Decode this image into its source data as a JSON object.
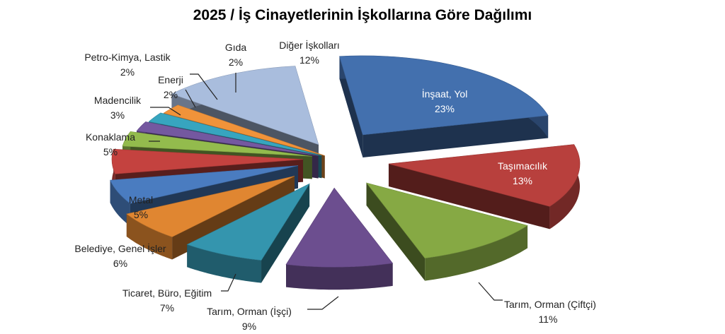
{
  "chart_data": {
    "type": "pie",
    "title": "2025 / İş Cinayetlerinin İşkollarına Göre Dağılımı",
    "slices": [
      {
        "name": "İnşaat, Yol",
        "value": 23,
        "label": "23%",
        "color": "#4370AE"
      },
      {
        "name": "Taşımacılık",
        "value": 13,
        "label": "13%",
        "color": "#B8403D"
      },
      {
        "name": "Tarım, Orman (Çiftçi)",
        "value": 11,
        "label": "11%",
        "color": "#86A944"
      },
      {
        "name": "Tarım, Orman (İşçi)",
        "value": 9,
        "label": "9%",
        "color": "#6C4E8F"
      },
      {
        "name": "Ticaret, Büro, Eğitim",
        "value": 7,
        "label": "7%",
        "color": "#3495AE"
      },
      {
        "name": "Belediye, Genel İşler",
        "value": 6,
        "label": "6%",
        "color": "#E08631"
      },
      {
        "name": "Metal",
        "value": 5,
        "label": "5%",
        "color": "#4A7CC0"
      },
      {
        "name": "Konaklama",
        "value": 5,
        "label": "5%",
        "color": "#C4423F"
      },
      {
        "name": "Madencilik",
        "value": 3,
        "label": "3%",
        "color": "#93BB4D"
      },
      {
        "name": "Enerji",
        "value": 2,
        "label": "2%",
        "color": "#7458A0"
      },
      {
        "name": "Petro-Kimya, Lastik",
        "value": 2,
        "label": "2%",
        "color": "#37A5BF"
      },
      {
        "name": "Gıda",
        "value": 2,
        "label": "2%",
        "color": "#F0933A"
      },
      {
        "name": "Diğer İşkolları",
        "value": 12,
        "label": "12%",
        "color": "#A9BDDD"
      }
    ]
  }
}
